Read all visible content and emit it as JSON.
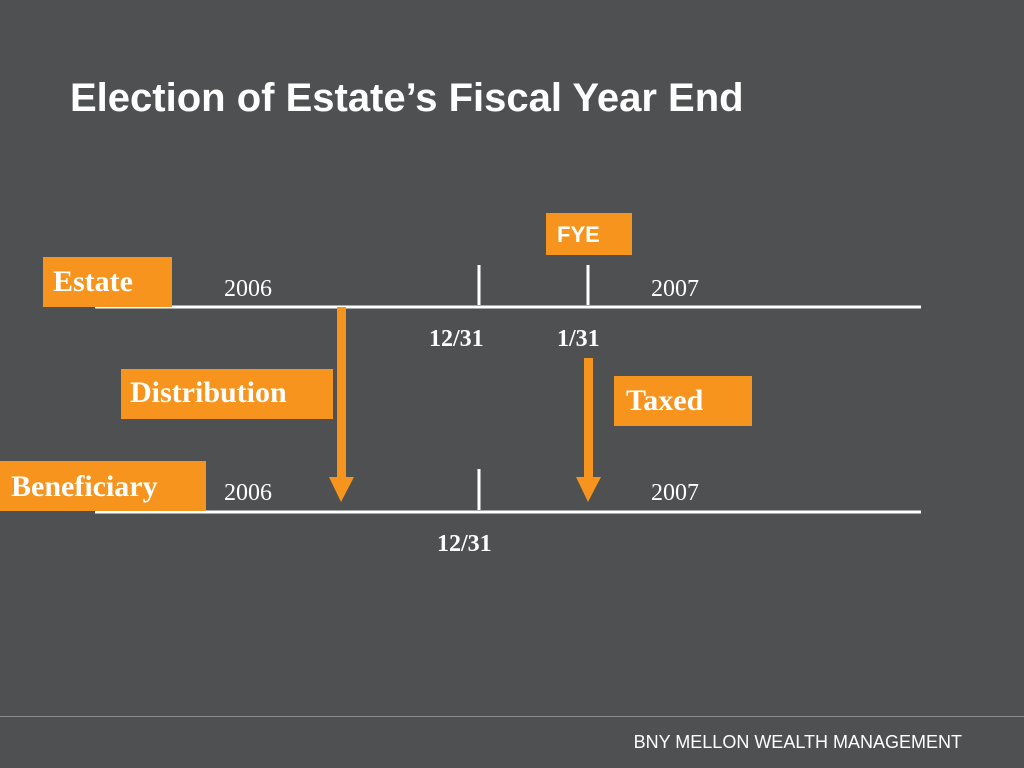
{
  "title": "Election of Estate’s Fiscal Year End",
  "labels": {
    "fye": "FYE",
    "estate": "Estate",
    "distribution": "Distribution",
    "taxed": "Taxed",
    "beneficiary": "Beneficiary"
  },
  "estate_timeline": {
    "year_left": "2006",
    "year_right": "2007",
    "date_1": "12/31",
    "date_2": "1/31"
  },
  "beneficiary_timeline": {
    "year_left": "2006",
    "year_right": "2007",
    "date_1": "12/31"
  },
  "footer": "BNY MELLON WEALTH MANAGEMENT",
  "colors": {
    "background": "#4f5052",
    "accent": "#f7941d",
    "text": "#ffffff"
  }
}
